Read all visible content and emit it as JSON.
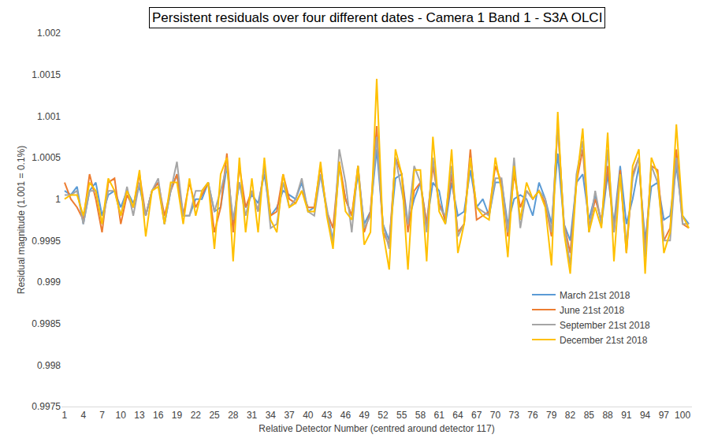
{
  "chart_data": {
    "type": "line",
    "title": "Persistent residuals over four different dates - Camera 1 Band 1 - S3A OLCI",
    "x_label": "Relative Detector Number (centred around detector 117)",
    "y_label": "Residual magnitude (1.001 = 0.1%)",
    "x": [
      1,
      2,
      3,
      4,
      5,
      6,
      7,
      8,
      9,
      10,
      11,
      12,
      13,
      14,
      15,
      16,
      17,
      18,
      19,
      20,
      21,
      22,
      23,
      24,
      25,
      26,
      27,
      28,
      29,
      30,
      31,
      32,
      33,
      34,
      35,
      36,
      37,
      38,
      39,
      40,
      41,
      42,
      43,
      44,
      45,
      46,
      47,
      48,
      49,
      50,
      51,
      52,
      53,
      54,
      55,
      56,
      57,
      58,
      59,
      60,
      61,
      62,
      63,
      64,
      65,
      66,
      67,
      68,
      69,
      70,
      71,
      72,
      73,
      74,
      75,
      76,
      77,
      78,
      79,
      80,
      81,
      82,
      83,
      84,
      85,
      86,
      87,
      88,
      89,
      90,
      91,
      92,
      93,
      94,
      95,
      96,
      97,
      98,
      99,
      100,
      101
    ],
    "xlim": [
      0.5,
      101.5
    ],
    "xticks": [
      1,
      4,
      7,
      10,
      13,
      16,
      19,
      22,
      25,
      28,
      31,
      34,
      37,
      40,
      43,
      46,
      49,
      52,
      55,
      58,
      61,
      64,
      67,
      70,
      73,
      76,
      79,
      82,
      85,
      88,
      91,
      94,
      97,
      100
    ],
    "ylim": [
      0.9975,
      1.002
    ],
    "yticks": [
      0.9975,
      0.998,
      0.9985,
      0.999,
      0.9995,
      1,
      1.0005,
      1.001,
      1.0015,
      1.002
    ],
    "grid": false,
    "legend": "lower right",
    "series": [
      {
        "name": "March 21st 2018",
        "color": "#5b9bd5",
        "values": [
          1.0001,
          1.00005,
          1.00015,
          0.9997,
          1.0001,
          1.0002,
          0.9998,
          1.00005,
          1.0001,
          0.9999,
          1.0001,
          0.99995,
          1.00015,
          0.9998,
          1.0001,
          1.0002,
          0.9997,
          1.0001,
          1.0003,
          0.9998,
          0.9998,
          1.0,
          1.0,
          1.0002,
          0.99985,
          0.9999,
          1.0004,
          0.9997,
          1.0002,
          0.9999,
          1.00005,
          0.99995,
          1.0003,
          0.9998,
          0.9999,
          1.0001,
          1.00005,
          1.0,
          1.0002,
          0.99985,
          0.9999,
          1.0003,
          0.99985,
          0.9995,
          1.0004,
          1.0,
          0.9998,
          1.0003,
          0.9997,
          0.99985,
          1.0006,
          0.9997,
          0.9995,
          1.00025,
          1.0003,
          0.9997,
          1.0,
          1.0002,
          0.9997,
          1.0002,
          1.0001,
          0.9997,
          1.0002,
          0.9998,
          0.99985,
          1.00035,
          0.9999,
          1.0,
          0.9998,
          1.0002,
          1.0002,
          0.9997,
          1.0,
          1.00005,
          1.0,
          0.9998,
          1.0002,
          1.0,
          0.9997,
          1.00055,
          0.9997,
          0.9995,
          1.0002,
          1.0003,
          0.99975,
          1.00005,
          0.9997,
          1.0003,
          0.9997,
          1.0004,
          0.9997,
          1.0,
          1.0004,
          0.9995,
          1.00015,
          1.0002,
          0.99975,
          0.9998,
          1.0004,
          0.9998,
          0.9997
        ]
      },
      {
        "name": "June 21st 2018",
        "color": "#ed7d31",
        "values": [
          1.0002,
          1.0,
          0.9999,
          0.99975,
          1.0003,
          1.0,
          0.9996,
          1.0002,
          1.00025,
          0.9997,
          1.00005,
          0.9999,
          1.0003,
          0.9998,
          1.0001,
          1.0002,
          0.9998,
          1.0001,
          1.0003,
          0.9998,
          1.0002,
          0.9999,
          1.00005,
          1.0002,
          0.9996,
          0.9999,
          1.00055,
          0.9996,
          1.0004,
          0.9999,
          1.0001,
          0.99985,
          1.0004,
          0.9998,
          0.99985,
          1.0003,
          1.0,
          0.99995,
          1.0001,
          0.9999,
          0.9999,
          1.0004,
          0.99985,
          0.99965,
          1.00045,
          1.0,
          0.9998,
          1.0004,
          0.9996,
          0.99985,
          1.00088,
          0.9996,
          0.99945,
          1.0005,
          1.0003,
          0.9996,
          1.0001,
          1.0002,
          0.9997,
          1.0004,
          0.99995,
          0.99975,
          1.0003,
          0.9996,
          0.9997,
          1.0006,
          0.99975,
          0.9998,
          0.99985,
          1.0004,
          1.0002,
          0.99955,
          1.0003,
          0.9999,
          1.0001,
          1.0,
          1.0001,
          0.99995,
          0.99955,
          1.0009,
          0.9997,
          0.99935,
          1.0002,
          1.0006,
          0.99965,
          1.0,
          0.99975,
          1.0004,
          0.9996,
          1.00035,
          0.99935,
          1.0003,
          1.0005,
          0.99935,
          1.0004,
          1.00035,
          0.9995,
          0.99965,
          1.0006,
          0.9997,
          0.99965
        ]
      },
      {
        "name": "September 21st 2018",
        "color": "#a5a5a5",
        "values": [
          1.00005,
          1.00005,
          1.0001,
          0.9997,
          1.0001,
          1.0001,
          0.9997,
          1.0001,
          1.0001,
          0.9998,
          1.00015,
          0.9998,
          1.0002,
          0.9998,
          1.0001,
          1.00025,
          0.9997,
          1.0001,
          1.00045,
          0.9998,
          0.9998,
          1.0001,
          1.0001,
          1.0002,
          0.99985,
          1.0001,
          1.0004,
          0.99975,
          1.0002,
          0.9998,
          1.0001,
          0.99985,
          1.0004,
          0.99965,
          0.9997,
          1.0002,
          0.9999,
          1.0,
          1.00025,
          0.99985,
          0.9998,
          1.0003,
          0.9999,
          0.99945,
          1.0006,
          1.0002,
          0.9996,
          1.0004,
          0.99965,
          0.9998,
          1.00075,
          0.9997,
          0.9994,
          1.0005,
          1.0001,
          0.9997,
          1.0004,
          1.0002,
          0.9996,
          1.0005,
          0.9999,
          0.9998,
          1.0004,
          0.99955,
          0.9997,
          1.0005,
          0.9999,
          0.99985,
          0.9998,
          1.00025,
          1.00025,
          0.9996,
          1.0005,
          0.99965,
          1.0001,
          1.0,
          1.0001,
          1.0,
          0.9996,
          1.0009,
          0.9997,
          0.9992,
          1.0003,
          1.0007,
          0.9996,
          1.0001,
          0.9997,
          1.0006,
          0.9996,
          1.0003,
          0.99945,
          1.00025,
          1.0005,
          0.9993,
          1.0004,
          1.0002,
          0.9995,
          0.9995,
          1.0005,
          0.9997,
          0.9997
        ]
      },
      {
        "name": "December 21st 2018",
        "color": "#ffc000",
        "values": [
          1.0,
          1.00005,
          1.00005,
          0.9998,
          1.0002,
          1.0001,
          0.9997,
          1.00025,
          1.0001,
          0.9998,
          1.0001,
          0.9999,
          1.00035,
          0.99955,
          1.0001,
          1.00015,
          0.9997,
          1.0002,
          1.0002,
          0.9997,
          1.00025,
          0.9998,
          1.0001,
          1.0002,
          0.9994,
          1.0003,
          1.0005,
          0.99925,
          1.0005,
          0.9996,
          1.00025,
          0.9996,
          1.0005,
          0.99975,
          0.9996,
          1.0003,
          0.9999,
          0.99995,
          1.0001,
          0.99985,
          0.99985,
          1.00045,
          0.9998,
          0.9994,
          1.00045,
          0.99985,
          0.99975,
          1.0004,
          0.99945,
          0.9996,
          1.00145,
          0.9996,
          0.99915,
          1.0006,
          1.0003,
          0.99915,
          1.00035,
          1.00035,
          0.99925,
          1.00075,
          0.99985,
          0.9997,
          1.0006,
          0.99935,
          0.9997,
          1.0005,
          0.9999,
          0.9998,
          0.99975,
          1.0005,
          1.0001,
          0.9993,
          1.0004,
          0.99975,
          1.0002,
          1.0,
          1.0001,
          0.9999,
          0.9992,
          1.00105,
          0.9996,
          0.9991,
          1.0002,
          1.00085,
          0.9996,
          0.9999,
          0.99965,
          1.0008,
          0.99925,
          1.0003,
          0.99935,
          1.0004,
          1.0006,
          0.9991,
          1.0005,
          1.0003,
          0.99935,
          0.9996,
          1.0009,
          0.9998,
          0.99965
        ]
      }
    ]
  }
}
